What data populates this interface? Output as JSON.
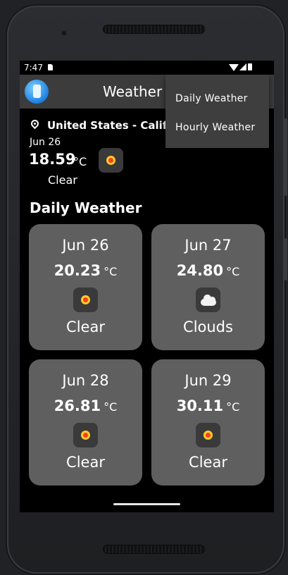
{
  "status_bar": {
    "time": "7:47"
  },
  "app_bar": {
    "title": "Weather A"
  },
  "menu": {
    "items": [
      "Daily Weather",
      "Hourly Weather"
    ]
  },
  "current": {
    "location": "United States - California",
    "date": "Jun 26",
    "temp": "18.59",
    "unit": "°C",
    "description": "Clear",
    "icon": "sun-icon"
  },
  "daily_section": {
    "title": "Daily Weather"
  },
  "daily": [
    {
      "date": "Jun 26",
      "temp": "20.23",
      "unit": "°C",
      "description": "Clear",
      "icon": "sun-icon"
    },
    {
      "date": "Jun 27",
      "temp": "24.80",
      "unit": "°C",
      "description": "Clouds",
      "icon": "cloud-icon"
    },
    {
      "date": "Jun 28",
      "temp": "26.81",
      "unit": "°C",
      "description": "Clear",
      "icon": "sun-icon"
    },
    {
      "date": "Jun 29",
      "temp": "30.11",
      "unit": "°C",
      "description": "Clear",
      "icon": "sun-icon"
    }
  ]
}
